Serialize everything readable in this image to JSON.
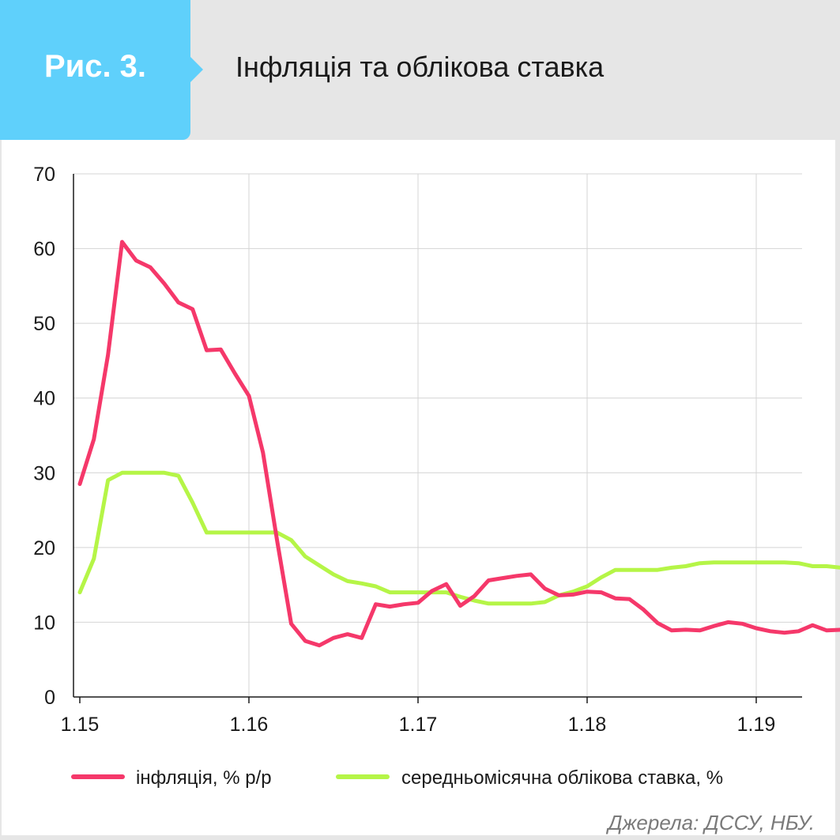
{
  "header": {
    "figure_number": "Рис. 3.",
    "title": "Інфляція та облікова ставка"
  },
  "source": "Джерела: ДССУ, НБУ.",
  "colors": {
    "inflation": "#f5386a",
    "rate": "#b5f547",
    "badge": "#5fd0fb",
    "grid": "#d4d4d4"
  },
  "chart_data": {
    "type": "line",
    "x_unit": "month index from January 2015",
    "xlim": [
      0,
      51
    ],
    "ylim": [
      0,
      70
    ],
    "y_ticks": [
      "0",
      "10",
      "20",
      "30",
      "40",
      "50",
      "60",
      "70"
    ],
    "x_ticks": [
      {
        "label": "1.15",
        "x": 0
      },
      {
        "label": "1.16",
        "x": 12
      },
      {
        "label": "1.17",
        "x": 24
      },
      {
        "label": "1.18",
        "x": 36
      },
      {
        "label": "1.19",
        "x": 48
      }
    ],
    "grid": true,
    "legend_position": "bottom",
    "series": [
      {
        "name": "інфляція, % р/р",
        "color_key": "inflation",
        "values": [
          28.5,
          34.5,
          45.8,
          60.9,
          58.4,
          57.5,
          55.3,
          52.8,
          51.9,
          46.4,
          46.5,
          43.3,
          40.3,
          32.7,
          20.9,
          9.8,
          7.5,
          6.9,
          7.9,
          8.4,
          7.9,
          12.4,
          12.1,
          12.4,
          12.6,
          14.2,
          15.1,
          12.2,
          13.5,
          15.6,
          15.9,
          16.2,
          16.4,
          14.5,
          13.6,
          13.7,
          14.1,
          14.0,
          13.2,
          13.1,
          11.7,
          9.9,
          8.9,
          9.0,
          8.9,
          9.5,
          10.0,
          9.8,
          9.2,
          8.8,
          8.6,
          8.8,
          9.6,
          8.9,
          9.0
        ]
      },
      {
        "name": "середньомісячна облікова ставка, %",
        "color_key": "rate",
        "values": [
          14.0,
          18.5,
          29.0,
          30.0,
          30.0,
          30.0,
          30.0,
          29.6,
          26.0,
          22.0,
          22.0,
          22.0,
          22.0,
          22.0,
          22.0,
          21.0,
          18.8,
          17.6,
          16.4,
          15.5,
          15.2,
          14.8,
          14.0,
          14.0,
          14.0,
          14.0,
          14.0,
          13.4,
          12.9,
          12.5,
          12.5,
          12.5,
          12.5,
          12.7,
          13.6,
          14.1,
          14.8,
          16.0,
          17.0,
          17.0,
          17.0,
          17.0,
          17.3,
          17.5,
          17.9,
          18.0,
          18.0,
          18.0,
          18.0,
          18.0,
          18.0,
          17.9,
          17.5,
          17.5,
          17.3
        ]
      }
    ]
  }
}
